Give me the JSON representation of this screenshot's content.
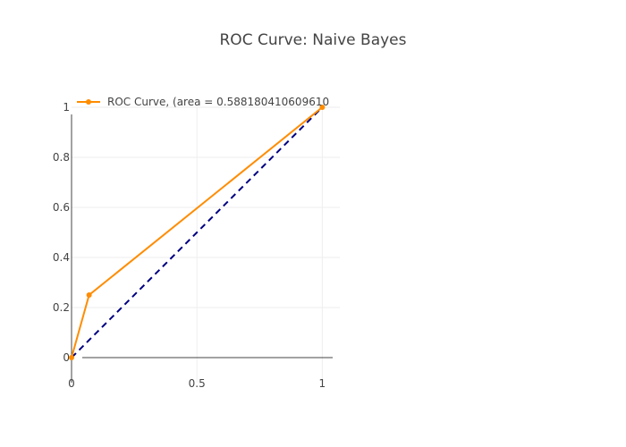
{
  "chart_data": {
    "type": "line",
    "title": "ROC Curve: Naive Bayes",
    "xlabel": "",
    "ylabel": "",
    "xlim": [
      0,
      1.07
    ],
    "ylim": [
      -0.1,
      1
    ],
    "grid": true,
    "legend_position": "top-left",
    "x_ticks": [
      {
        "value": 0,
        "label": "0"
      },
      {
        "value": 0.5,
        "label": "0.5"
      },
      {
        "value": 1,
        "label": "1"
      }
    ],
    "y_ticks": [
      {
        "value": 0,
        "label": "0"
      },
      {
        "value": 0.2,
        "label": "0.2"
      },
      {
        "value": 0.4,
        "label": "0.4"
      },
      {
        "value": 0.6,
        "label": "0.6"
      },
      {
        "value": 0.8,
        "label": "0.8"
      },
      {
        "value": 1,
        "label": "1"
      }
    ],
    "series": [
      {
        "name": "ROC Curve, (area = 0.588180410609610",
        "color": "#ff8c00",
        "style": "solid",
        "markers": true,
        "x": [
          0,
          0.07,
          1
        ],
        "y": [
          0,
          0.25,
          1
        ]
      },
      {
        "color": "#000080",
        "style": "dashed",
        "markers": false,
        "x": [
          0,
          1
        ],
        "y": [
          0,
          1
        ]
      }
    ]
  }
}
